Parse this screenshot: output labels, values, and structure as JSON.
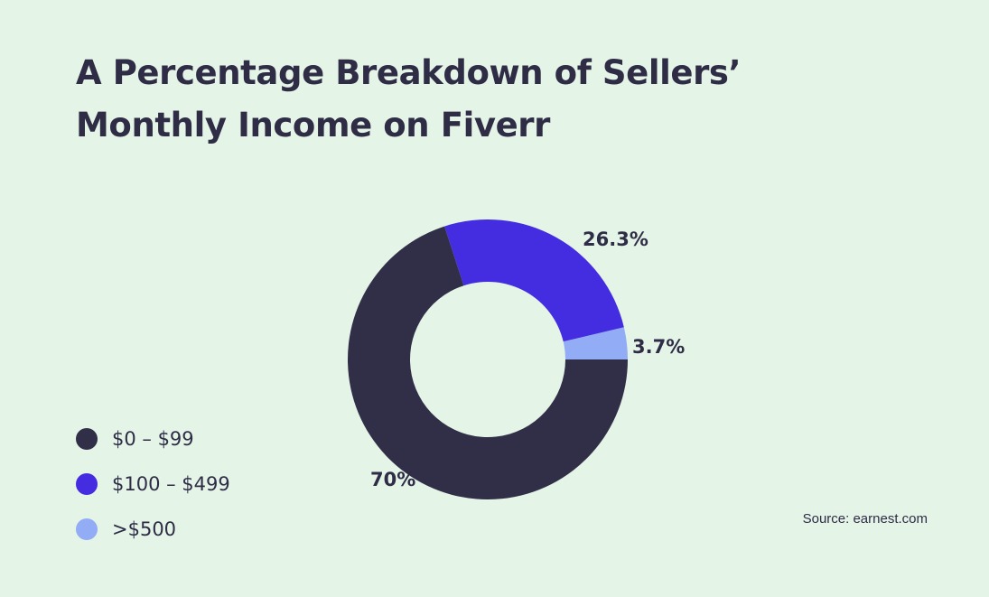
{
  "title": {
    "line1": "A Percentage Breakdown of Sellers’",
    "line2": "Monthly Income on Fiverr"
  },
  "colors": {
    "background": "#e4f4e7",
    "text": "#2f2c46"
  },
  "chart_data": {
    "type": "pie",
    "variant": "donut",
    "categories": [
      "$0 – $99",
      "$100 – $499",
      ">$500"
    ],
    "values": [
      70,
      26.3,
      3.7
    ],
    "labels": [
      "70%",
      "26.3%",
      "3.7%"
    ],
    "colors": [
      "#312e48",
      "#442ce0",
      "#92acf5"
    ],
    "legend_position": "bottom-left"
  },
  "source": "Source: earnest.com"
}
